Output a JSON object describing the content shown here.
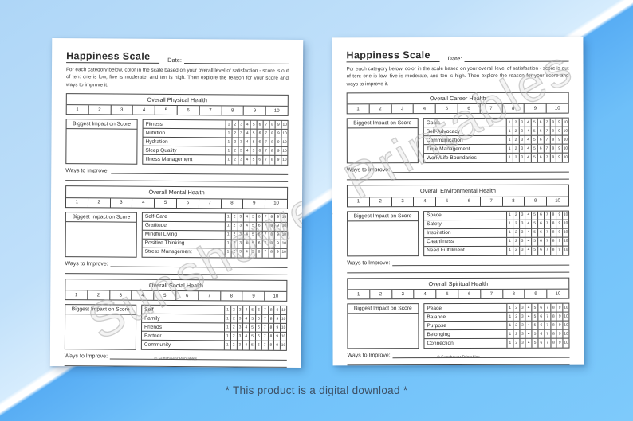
{
  "background": {
    "pale_blue": "#b5daf8",
    "bright_blue": "#6fc0f9",
    "stripe_white": "#ffffff",
    "caption_color": "#3d5166"
  },
  "caption": "* This product is a digital download *",
  "watermark": "Sunshower Printables",
  "scale_numbers": [
    "1",
    "2",
    "3",
    "4",
    "5",
    "6",
    "7",
    "8",
    "9",
    "10"
  ],
  "pages": [
    {
      "title": "Happiness Scale",
      "date_label": "Date:",
      "instructions": "For each category below, color in the scale based on your overall level of satisfaction - score is out of ten: one is low, five is moderate, and ten is high. Then explore the reason for your score and ways to improve it.",
      "impact_label": "Biggest Impact on Score",
      "ways_label": "Ways to Improve:",
      "footer": "© Sunshower Printables",
      "sections": [
        {
          "header": "Overall Physical Health",
          "rows": [
            "Fitness",
            "Nutrition",
            "Hydration",
            "Sleep Quality",
            "Illness Management"
          ]
        },
        {
          "header": "Overall Mental Health",
          "rows": [
            "Self-Care",
            "Gratitude",
            "Mindful Living",
            "Positive Thinking",
            "Stress Management"
          ]
        },
        {
          "header": "Overall Social Health",
          "rows": [
            "Self",
            "Family",
            "Friends",
            "Partner",
            "Community"
          ]
        }
      ]
    },
    {
      "title": "Happiness Scale",
      "date_label": "Date:",
      "instructions": "For each category below, color in the scale based on your overall level of satisfaction - score is out of ten: one is low, five is moderate, and ten is high. Then explore the reason for your score and ways to improve it.",
      "impact_label": "Biggest Impact on Score",
      "ways_label": "Ways to Improve:",
      "footer": "© Sunshower Printables",
      "sections": [
        {
          "header": "Overall Career Health",
          "rows": [
            "Goals",
            "Self-Advocacy",
            "Communication",
            "Time Management",
            "Work/Life Boundaries"
          ]
        },
        {
          "header": "Overall Environmental Health",
          "rows": [
            "Space",
            "Safety",
            "Inspiration",
            "Cleanliness",
            "Need Fulfillment"
          ]
        },
        {
          "header": "Overall Spiritual Health",
          "rows": [
            "Peace",
            "Balance",
            "Purpose",
            "Belonging",
            "Connection"
          ]
        }
      ]
    }
  ]
}
